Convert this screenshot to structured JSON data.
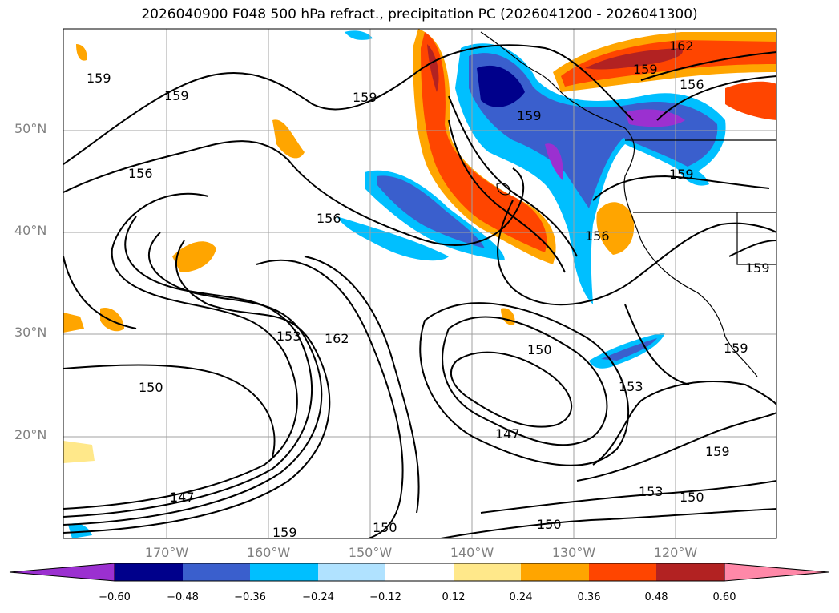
{
  "title": "2026040900 F048 500 hPa refract., precipitation PC (2026041200 - 2026041300)",
  "lat_labels": [
    "50°N",
    "40°N",
    "30°N",
    "20°N"
  ],
  "lon_labels": [
    "170°W",
    "160°W",
    "150°W",
    "140°W",
    "130°W",
    "120°W"
  ],
  "colorbar": {
    "ticks": [
      "−0.60",
      "−0.48",
      "−0.36",
      "−0.24",
      "−0.12",
      "0.12",
      "0.24",
      "0.36",
      "0.48",
      "0.60"
    ],
    "colors": [
      "#9b30d0",
      "#00008b",
      "#3a5fcd",
      "#00bfff",
      "#b0e2ff",
      "#ffffff",
      "#ffe88a",
      "#ffa500",
      "#ff4500",
      "#b22222",
      "#ff88a8"
    ]
  },
  "contour_labels": [
    "159",
    "159",
    "159",
    "159",
    "162",
    "159",
    "156",
    "156",
    "156",
    "156",
    "159",
    "159",
    "162",
    "153",
    "150",
    "150",
    "153",
    "147",
    "147",
    "150",
    "150",
    "153",
    "159",
    "150",
    "159",
    "159"
  ]
}
